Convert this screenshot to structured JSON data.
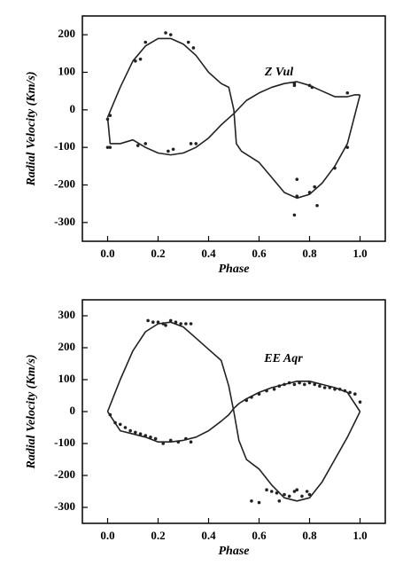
{
  "chart_data": [
    {
      "type": "line",
      "annotation": "Z Vul",
      "xlabel": "Phase",
      "ylabel": "Radial Velocity (Km/s)",
      "xlim": [
        -0.1,
        1.1
      ],
      "ylim": [
        -350,
        250
      ],
      "xticks": [
        {
          "value": 0,
          "label": "0.0"
        },
        {
          "value": 0.2,
          "label": "0.2"
        },
        {
          "value": 0.4,
          "label": "0.4"
        },
        {
          "value": 0.6,
          "label": "0.6"
        },
        {
          "value": 0.8,
          "label": "0.8"
        },
        {
          "value": 1,
          "label": "1.0"
        }
      ],
      "yticks": [
        200,
        100,
        0,
        -100,
        -200,
        -300
      ],
      "series": [
        {
          "color": "#222",
          "marker": "dot",
          "x": [
            0.0,
            0.01,
            0.0,
            0.01,
            0.11,
            0.13,
            0.15,
            0.12,
            0.15,
            0.23,
            0.25,
            0.24,
            0.26,
            0.32,
            0.33,
            0.35,
            0.34,
            0.74,
            0.74,
            0.75,
            0.74,
            0.75,
            0.8,
            0.81,
            0.8,
            0.82,
            0.83,
            0.9,
            0.95,
            0.95
          ],
          "values": [
            -100,
            -100,
            -25,
            -15,
            130,
            135,
            180,
            -95,
            -90,
            205,
            200,
            -110,
            -105,
            180,
            -90,
            -90,
            165,
            65,
            70,
            -185,
            -280,
            -230,
            -220,
            60,
            65,
            -205,
            -255,
            -155,
            -100,
            45
          ]
        },
        {
          "color": "#222",
          "marker": "none",
          "x": [
            0,
            0.05,
            0.1,
            0.15,
            0.2,
            0.25,
            0.3,
            0.35,
            0.4,
            0.45,
            0.48,
            0.5,
            0.51,
            0.53,
            0.6,
            0.65,
            0.7,
            0.75,
            0.8,
            0.85,
            0.9,
            0.95,
            1.0
          ],
          "values": [
            -20,
            60,
            130,
            170,
            190,
            190,
            175,
            145,
            100,
            70,
            60,
            0,
            -90,
            -110,
            -140,
            -180,
            -220,
            -235,
            -225,
            -195,
            -150,
            -90,
            40
          ]
        },
        {
          "color": "#222",
          "marker": "none",
          "x": [
            0,
            0.01,
            0.05,
            0.1,
            0.15,
            0.2,
            0.25,
            0.3,
            0.35,
            0.4,
            0.45,
            0.5,
            0.55,
            0.6,
            0.65,
            0.7,
            0.75,
            0.8,
            0.85,
            0.9,
            0.95,
            0.98,
            1.0
          ],
          "values": [
            -20,
            -90,
            -90,
            -80,
            -100,
            -115,
            -120,
            -115,
            -100,
            -75,
            -40,
            -10,
            25,
            45,
            60,
            70,
            75,
            65,
            50,
            35,
            35,
            40,
            40
          ]
        }
      ]
    },
    {
      "type": "line",
      "annotation": "EE Aqr",
      "xlabel": "Phase",
      "ylabel": "Radial Velocity (Km/s)",
      "xlim": [
        -0.1,
        1.1
      ],
      "ylim": [
        -350,
        350
      ],
      "xticks": [
        {
          "value": 0,
          "label": "0.0"
        },
        {
          "value": 0.2,
          "label": "0.2"
        },
        {
          "value": 0.4,
          "label": "0.4"
        },
        {
          "value": 0.6,
          "label": "0.6"
        },
        {
          "value": 0.8,
          "label": "0.8"
        },
        {
          "value": 1,
          "label": "1.0"
        }
      ],
      "yticks": [
        300,
        200,
        100,
        0,
        -100,
        -200,
        -300
      ],
      "series": [
        {
          "color": "#222",
          "marker": "dot",
          "x": [
            0.16,
            0.18,
            0.2,
            0.22,
            0.23,
            0.25,
            0.27,
            0.29,
            0.31,
            0.33,
            0.01,
            0.03,
            0.05,
            0.07,
            0.09,
            0.11,
            0.13,
            0.15,
            0.17,
            0.19,
            0.22,
            0.25,
            0.28,
            0.31,
            0.33,
            0.55,
            0.57,
            0.6,
            0.63,
            0.66,
            0.68,
            0.7,
            0.72,
            0.74,
            0.76,
            0.78,
            0.8,
            0.82,
            0.84,
            0.86,
            0.88,
            0.9,
            0.92,
            0.94,
            0.96,
            0.98,
            1.0,
            0.57,
            0.6,
            0.63,
            0.65,
            0.67,
            0.68,
            0.7,
            0.72,
            0.74,
            0.75,
            0.77,
            0.79,
            0.8
          ],
          "values": [
            285,
            280,
            280,
            275,
            270,
            285,
            280,
            275,
            275,
            275,
            -10,
            -35,
            -40,
            -50,
            -60,
            -65,
            -70,
            -75,
            -80,
            -85,
            -100,
            -90,
            -95,
            -85,
            -95,
            35,
            45,
            55,
            65,
            70,
            80,
            85,
            90,
            85,
            90,
            85,
            90,
            85,
            80,
            75,
            75,
            70,
            70,
            65,
            60,
            55,
            30,
            -280,
            -285,
            -245,
            -250,
            -255,
            -280,
            -260,
            -265,
            -250,
            -245,
            -265,
            -250,
            -260
          ]
        },
        {
          "color": "#222",
          "marker": "none",
          "x": [
            0,
            0.05,
            0.1,
            0.15,
            0.2,
            0.25,
            0.3,
            0.35,
            0.4,
            0.45,
            0.48,
            0.5,
            0.52,
            0.55,
            0.6,
            0.65,
            0.7,
            0.75,
            0.8,
            0.85,
            0.9,
            0.95,
            1.0
          ],
          "values": [
            0,
            100,
            190,
            250,
            275,
            280,
            265,
            230,
            195,
            160,
            80,
            0,
            -90,
            -150,
            -180,
            -230,
            -270,
            -280,
            -270,
            -220,
            -150,
            -80,
            0
          ]
        },
        {
          "color": "#222",
          "marker": "none",
          "x": [
            0,
            0.05,
            0.1,
            0.15,
            0.2,
            0.25,
            0.3,
            0.35,
            0.4,
            0.45,
            0.48,
            0.5,
            0.52,
            0.55,
            0.6,
            0.65,
            0.7,
            0.75,
            0.8,
            0.85,
            0.9,
            0.95,
            1.0
          ],
          "values": [
            0,
            -60,
            -70,
            -80,
            -95,
            -95,
            -90,
            -80,
            -60,
            -30,
            -10,
            10,
            25,
            40,
            60,
            75,
            85,
            95,
            95,
            85,
            75,
            60,
            0
          ]
        }
      ]
    }
  ]
}
